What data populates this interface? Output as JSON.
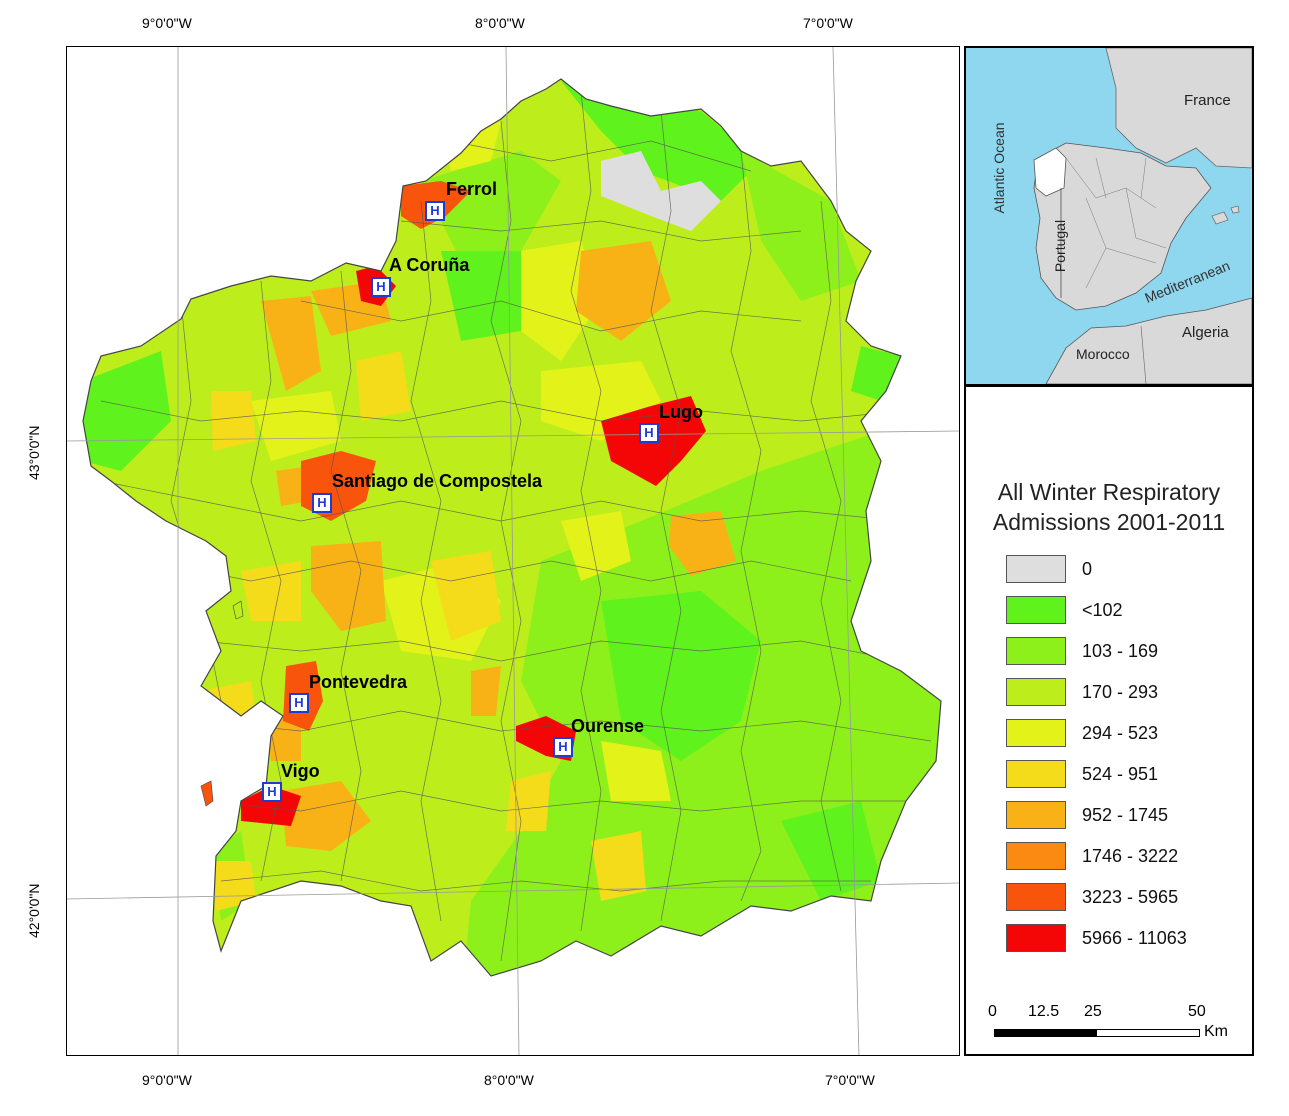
{
  "coordinates": {
    "top": [
      "9°0'0\"W",
      "8°0'0\"W",
      "7°0'0\"W"
    ],
    "bottom": [
      "9°0'0\"W",
      "8°0'0\"W",
      "7°0'0\"W"
    ],
    "left": [
      "43°0'0\"N",
      "42°0'0\"N"
    ]
  },
  "cities": [
    {
      "name": "Ferrol"
    },
    {
      "name": "A Coruña"
    },
    {
      "name": "Lugo"
    },
    {
      "name": "Santiago de Compostela"
    },
    {
      "name": "Pontevedra"
    },
    {
      "name": "Ourense"
    },
    {
      "name": "Vigo"
    }
  ],
  "hospital_symbol": "H",
  "inset": {
    "labels": [
      "France",
      "Atlantic Ocean",
      "Portugal",
      "Mediterranean",
      "Algeria",
      "Morocco"
    ]
  },
  "legend": {
    "title_line1": "All Winter Respiratory",
    "title_line2": "Admissions 2001-2011",
    "classes": [
      {
        "label": "0",
        "color": "#dedede"
      },
      {
        "label": "<102",
        "color": "#5ff21c"
      },
      {
        "label": "103 - 169",
        "color": "#8ef01a"
      },
      {
        "label": "170 - 293",
        "color": "#bdee1c"
      },
      {
        "label": "294 - 523",
        "color": "#e3f31a"
      },
      {
        "label": "524 - 951",
        "color": "#f5dc1a"
      },
      {
        "label": "952 - 1745",
        "color": "#f9b215"
      },
      {
        "label": "1746 - 3222",
        "color": "#fb8a12"
      },
      {
        "label": "3223 - 5965",
        "color": "#f8540c"
      },
      {
        "label": "5966 - 11063",
        "color": "#f50606"
      }
    ]
  },
  "scale_bar": {
    "ticks": [
      "0",
      "12.5",
      "25",
      "50"
    ],
    "unit": "Km"
  },
  "colors": {
    "sea": "#8fd6ef",
    "land_inset": "#d9d9d9",
    "highlight": "#ffffff",
    "hospital": "#1f3bd6",
    "border": "#444444"
  }
}
